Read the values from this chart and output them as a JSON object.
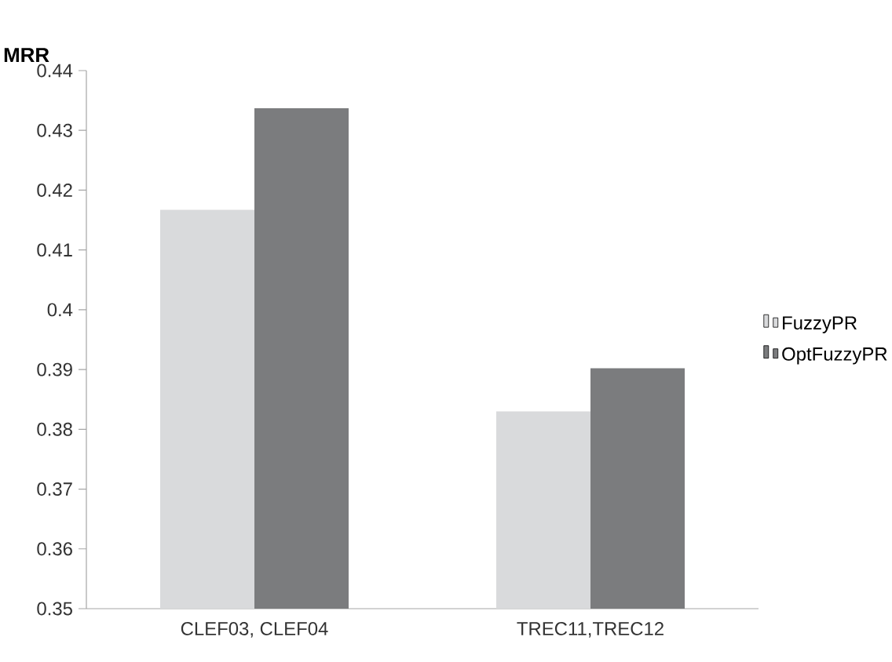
{
  "chart_data": {
    "type": "bar",
    "ylabel": "MRR",
    "categories": [
      "CLEF03, CLEF04",
      "TREC11,TREC12"
    ],
    "series": [
      {
        "name": "FuzzyPR",
        "color": "#d9dadc",
        "values": [
          0.4167,
          0.383
        ]
      },
      {
        "name": "OptFuzzyPR",
        "color": "#7b7c7e",
        "values": [
          0.4337,
          0.3902
        ]
      }
    ],
    "ylim": [
      0.35,
      0.44
    ],
    "yticks": [
      0.35,
      0.36,
      0.37,
      0.38,
      0.39,
      0.4,
      0.41,
      0.42,
      0.43,
      0.44
    ],
    "grid": false,
    "legend": "right"
  }
}
